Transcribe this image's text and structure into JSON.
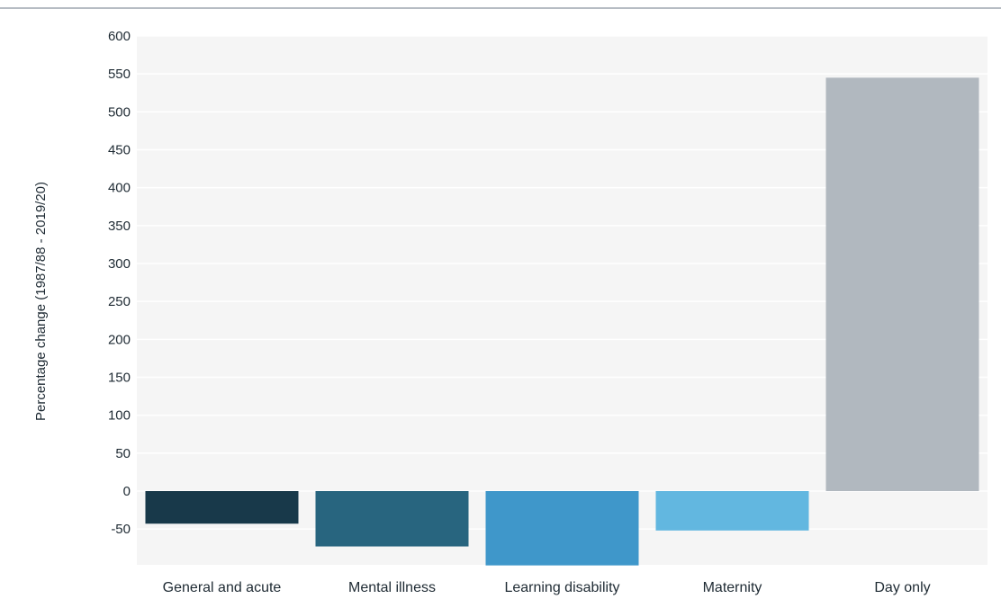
{
  "chart_data": {
    "type": "bar",
    "title": "",
    "xlabel": "",
    "ylabel": "Percentage change (1987/88 - 2019/20)",
    "categories": [
      "General and acute",
      "Mental illness",
      "Learning disability",
      "Maternity",
      "Day only"
    ],
    "values": [
      -43,
      -73,
      -98,
      -52,
      545
    ],
    "colors": [
      "#18394a",
      "#28657f",
      "#3f97ca",
      "#62b7e0",
      "#b1b8bf"
    ],
    "ylim": [
      -98,
      600
    ],
    "yticks": [
      600,
      550,
      500,
      450,
      400,
      350,
      300,
      250,
      200,
      150,
      100,
      50,
      0,
      -50
    ],
    "grid": true,
    "legend": "none",
    "background": "#f5f5f5"
  }
}
